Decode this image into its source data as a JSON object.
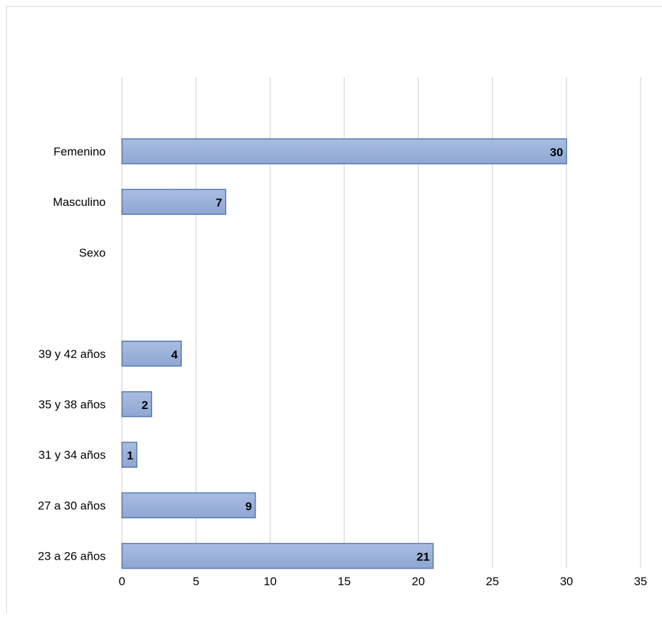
{
  "chart_data": {
    "type": "bar",
    "orientation": "horizontal",
    "title": "",
    "xlabel": "",
    "ylabel": "",
    "xlim": [
      0,
      35
    ],
    "x_ticks": [
      "0",
      "5",
      "10",
      "15",
      "20",
      "25",
      "30",
      "35"
    ],
    "grid": "vertical",
    "legend": "none",
    "categories_top_to_bottom": [
      "Femenino",
      "Masculino",
      "Sexo",
      "",
      "39 y 42 años",
      "35 y 38 años",
      "31 y 34 años",
      "27 a 30 años",
      "23 a 26 años"
    ],
    "values_top_to_bottom": [
      30,
      7,
      null,
      null,
      4,
      2,
      1,
      9,
      21
    ],
    "data_labels_top_to_bottom": [
      "30",
      "7",
      "",
      "",
      "4",
      "2",
      "1",
      "9",
      "21"
    ],
    "colors": {
      "bar_fill_top": "#a9bde0",
      "bar_fill_bottom": "#8ea7d3",
      "bar_stroke": "#5575b0",
      "grid": "#d9d9d9",
      "border": "#d9d9d9",
      "text": "#000000"
    }
  }
}
